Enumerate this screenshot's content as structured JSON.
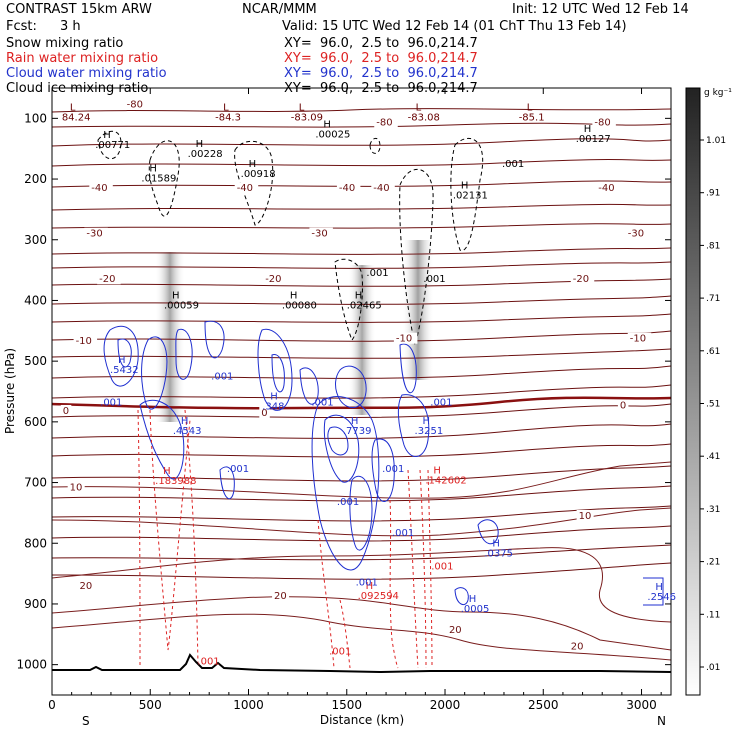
{
  "header": {
    "model": "CONTRAST 15km ARW",
    "org": "NCAR/MMM",
    "init": "Init: 12 UTC Wed 12 Feb 14",
    "fcst_label": "Fcst:",
    "fcst_value": "3 h",
    "valid": "Valid: 15 UTC Wed 12 Feb 14 (01 ChT Thu 13 Feb 14)",
    "fields": [
      {
        "label": "Snow mixing ratio",
        "xy": "XY=  96.0,  2.5 to  96.0,214.7",
        "color": "#000000"
      },
      {
        "label": "Rain water mixing ratio",
        "xy": "XY=  96.0,  2.5 to  96.0,214.7",
        "color": "#dd2222"
      },
      {
        "label": "Cloud water mixing ratio",
        "xy": "XY=  96.0,  2.5 to  96.0,214.7",
        "color": "#2233cc"
      },
      {
        "label": "Cloud ice mixing ratio",
        "xy": "XY=  96.0,  2.5 to  96.0,214.7",
        "color": "#000000"
      }
    ]
  },
  "chart_data": {
    "type": "cross-section",
    "xlabel": "Distance (km)",
    "ylabel": "Pressure (hPa)",
    "xlim": [
      0,
      3150
    ],
    "ylim": [
      1050,
      50
    ],
    "xticks": [
      0,
      500,
      1000,
      1500,
      2000,
      2500,
      3000
    ],
    "yticks": [
      100,
      200,
      300,
      400,
      500,
      600,
      700,
      800,
      900,
      1000
    ],
    "left_end": "S",
    "right_end": "N",
    "colorbar": {
      "unit": "g kg⁻¹",
      "levels": [
        ".01",
        ".11",
        ".21",
        ".31",
        ".41",
        ".51",
        ".61",
        ".71",
        ".81",
        ".91",
        "1.01"
      ]
    },
    "temperature_labels": [
      {
        "x": 380,
        "p": 82,
        "text": "-80"
      },
      {
        "x": 1650,
        "p": 112,
        "text": "-80"
      },
      {
        "x": 2760,
        "p": 112,
        "text": "-80"
      },
      {
        "x": 200,
        "p": 220,
        "text": "-40"
      },
      {
        "x": 940,
        "p": 220,
        "text": "-40"
      },
      {
        "x": 1460,
        "p": 220,
        "text": "-40"
      },
      {
        "x": 1635,
        "p": 220,
        "text": "-40"
      },
      {
        "x": 2780,
        "p": 220,
        "text": "-40"
      },
      {
        "x": 175,
        "p": 295,
        "text": "-30"
      },
      {
        "x": 1320,
        "p": 295,
        "text": "-30"
      },
      {
        "x": 2930,
        "p": 295,
        "text": "-30"
      },
      {
        "x": 240,
        "p": 370,
        "text": "-20"
      },
      {
        "x": 1085,
        "p": 370,
        "text": "-20"
      },
      {
        "x": 2650,
        "p": 370,
        "text": "-20"
      },
      {
        "x": 120,
        "p": 472,
        "text": "-10"
      },
      {
        "x": 1750,
        "p": 468,
        "text": "-10"
      },
      {
        "x": 2940,
        "p": 468,
        "text": "-10"
      },
      {
        "x": 55,
        "p": 587,
        "text": "0"
      },
      {
        "x": 1065,
        "p": 590,
        "text": "0"
      },
      {
        "x": 2890,
        "p": 578,
        "text": "0"
      },
      {
        "x": 90,
        "p": 713,
        "text": "10"
      },
      {
        "x": 2680,
        "p": 760,
        "text": "10"
      },
      {
        "x": 140,
        "p": 875,
        "text": "20"
      },
      {
        "x": 1130,
        "p": 892,
        "text": "20"
      },
      {
        "x": 2020,
        "p": 948,
        "text": "20"
      },
      {
        "x": 2640,
        "p": 975,
        "text": "20"
      }
    ],
    "extrema_labels": [
      {
        "x": 50,
        "p": 102,
        "mark": "L",
        "value": "84.24",
        "color": "#660000"
      },
      {
        "x": 830,
        "p": 102,
        "mark": "L",
        "value": "-84.3",
        "color": "#660000"
      },
      {
        "x": 1215,
        "p": 102,
        "mark": "L",
        "value": "-83.09",
        "color": "#660000"
      },
      {
        "x": 1810,
        "p": 102,
        "mark": "L",
        "value": "-83.08",
        "color": "#660000"
      },
      {
        "x": 2375,
        "p": 102,
        "mark": "L",
        "value": "-85.1",
        "color": "#660000"
      },
      {
        "x": 220,
        "p": 147,
        "mark": "H",
        "value": ".00771",
        "color": "#000000"
      },
      {
        "x": 690,
        "p": 162,
        "mark": "H",
        "value": ".00228",
        "color": "#000000"
      },
      {
        "x": 1340,
        "p": 130,
        "mark": "H",
        "value": ".00025",
        "color": "#000000"
      },
      {
        "x": 2665,
        "p": 137,
        "mark": "H",
        "value": ".00127",
        "color": "#000000"
      },
      {
        "x": 455,
        "p": 202,
        "mark": "H",
        "value": ".01589",
        "color": "#000000"
      },
      {
        "x": 960,
        "p": 195,
        "mark": "H",
        "value": ".00918",
        "color": "#000000"
      },
      {
        "x": 2040,
        "p": 230,
        "mark": "H",
        "value": ".02131",
        "color": "#000000"
      },
      {
        "x": 570,
        "p": 412,
        "mark": "H",
        "value": ".00059",
        "color": "#000000"
      },
      {
        "x": 1170,
        "p": 412,
        "mark": "H",
        "value": ".00080",
        "color": "#000000"
      },
      {
        "x": 1500,
        "p": 412,
        "mark": "H",
        "value": ".02465",
        "color": "#000000"
      },
      {
        "x": 295,
        "p": 518,
        "mark": "H",
        "value": ".5432",
        "color": "#2233cc"
      },
      {
        "x": 1070,
        "p": 578,
        "mark": "H",
        "value": ".348",
        "color": "#2233cc"
      },
      {
        "x": 615,
        "p": 618,
        "mark": "H",
        "value": ".4543",
        "color": "#2233cc"
      },
      {
        "x": 1480,
        "p": 618,
        "mark": "H",
        "value": ".7739",
        "color": "#2233cc"
      },
      {
        "x": 1845,
        "p": 618,
        "mark": "H",
        "value": ".3251",
        "color": "#2233cc"
      },
      {
        "x": 525,
        "p": 701,
        "mark": "H",
        "value": ".183988",
        "color": "#dd2222"
      },
      {
        "x": 1900,
        "p": 700,
        "mark": "H",
        "value": ".142602",
        "color": "#dd2222"
      },
      {
        "x": 2200,
        "p": 820,
        "mark": "H",
        "value": ".0375",
        "color": "#2233cc"
      },
      {
        "x": 3030,
        "p": 892,
        "mark": "H",
        "value": ".2546",
        "color": "#2233cc"
      },
      {
        "x": 1555,
        "p": 890,
        "mark": "H",
        "value": ".092594",
        "color": "#dd2222"
      },
      {
        "x": 2080,
        "p": 912,
        "mark": "H",
        "value": ".0005",
        "color": "#2233cc"
      }
    ],
    "contour_labels": [
      {
        "x": 380,
        "p": 112,
        "text": "",
        "color": "#000000"
      },
      {
        "x": 2290,
        "p": 180,
        "text": ".001",
        "color": "#000000"
      },
      {
        "x": 1600,
        "p": 360,
        "text": ".001",
        "color": "#000000"
      },
      {
        "x": 1890,
        "p": 370,
        "text": ".001",
        "color": "#000000"
      },
      {
        "x": 810,
        "p": 530,
        "text": ".001",
        "color": "#2233cc"
      },
      {
        "x": 245,
        "p": 573,
        "text": ".001",
        "color": "#2233cc"
      },
      {
        "x": 1320,
        "p": 573,
        "text": ".001",
        "color": "#2233cc"
      },
      {
        "x": 1925,
        "p": 573,
        "text": ".001",
        "color": "#2233cc"
      },
      {
        "x": 890,
        "p": 683,
        "text": ".001",
        "color": "#2233cc"
      },
      {
        "x": 1680,
        "p": 683,
        "text": ".001",
        "color": "#2233cc"
      },
      {
        "x": 1450,
        "p": 737,
        "text": ".001",
        "color": "#2233cc"
      },
      {
        "x": 1730,
        "p": 788,
        "text": ".001",
        "color": "#2233cc"
      },
      {
        "x": 1545,
        "p": 870,
        "text": ".001",
        "color": "#2233cc"
      },
      {
        "x": 1930,
        "p": 843,
        "text": ".001",
        "color": "#dd2222"
      },
      {
        "x": 1410,
        "p": 983,
        "text": ".001",
        "color": "#dd2222"
      },
      {
        "x": 740,
        "p": 1000,
        "text": ".001",
        "color": "#dd2222"
      }
    ]
  }
}
